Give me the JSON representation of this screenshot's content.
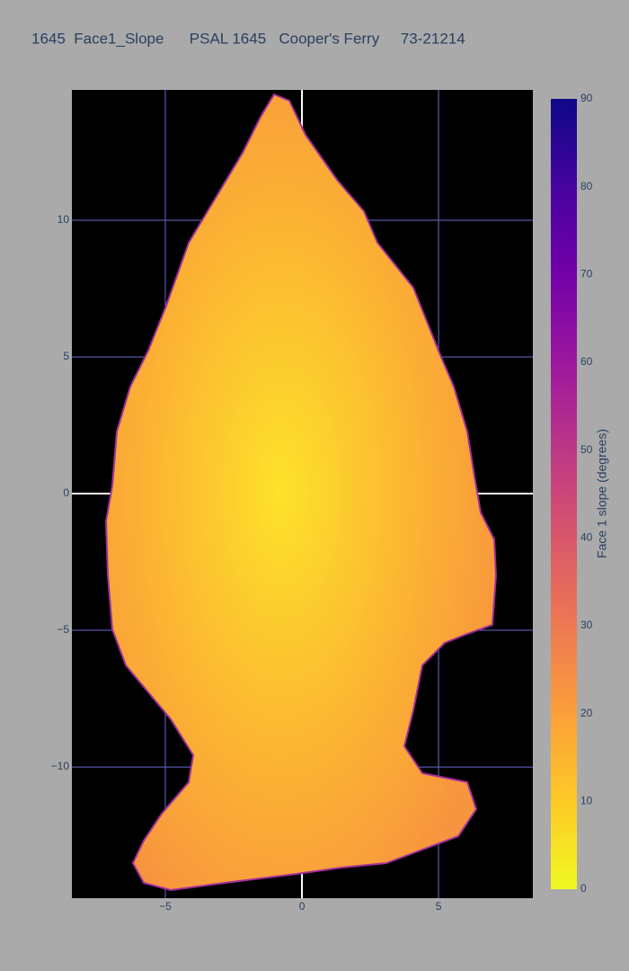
{
  "chart_data": {
    "type": "heatmap",
    "title": "1645  Face1_Slope      PSAL 1645   Cooper's Ferry     73-21214",
    "xlim": [
      -8.42,
      8.45
    ],
    "ylim": [
      -14.8,
      14.77
    ],
    "xticks": [
      {
        "value": -5,
        "label": "−5"
      },
      0,
      5
    ],
    "yticks": [
      {
        "value": -10,
        "label": "−10"
      },
      {
        "value": -5,
        "label": "−5"
      },
      0,
      5,
      10
    ],
    "grid": true,
    "zeroline": true,
    "colorbar": {
      "title": "Face 1 slope (degrees)",
      "range": [
        0,
        90
      ],
      "ticks": [
        0,
        10,
        20,
        30,
        40,
        50,
        60,
        70,
        80,
        90
      ],
      "colorscale": [
        [
          0,
          "#f0f921"
        ],
        [
          10,
          "#fdca26"
        ],
        [
          20,
          "#fb9f3a"
        ],
        [
          30,
          "#ed7953"
        ],
        [
          40,
          "#d8576b"
        ],
        [
          50,
          "#bd3786"
        ],
        [
          60,
          "#9c179e"
        ],
        [
          70,
          "#7201a8"
        ],
        [
          80,
          "#46039f"
        ],
        [
          90,
          "#0d0887"
        ]
      ]
    }
  }
}
